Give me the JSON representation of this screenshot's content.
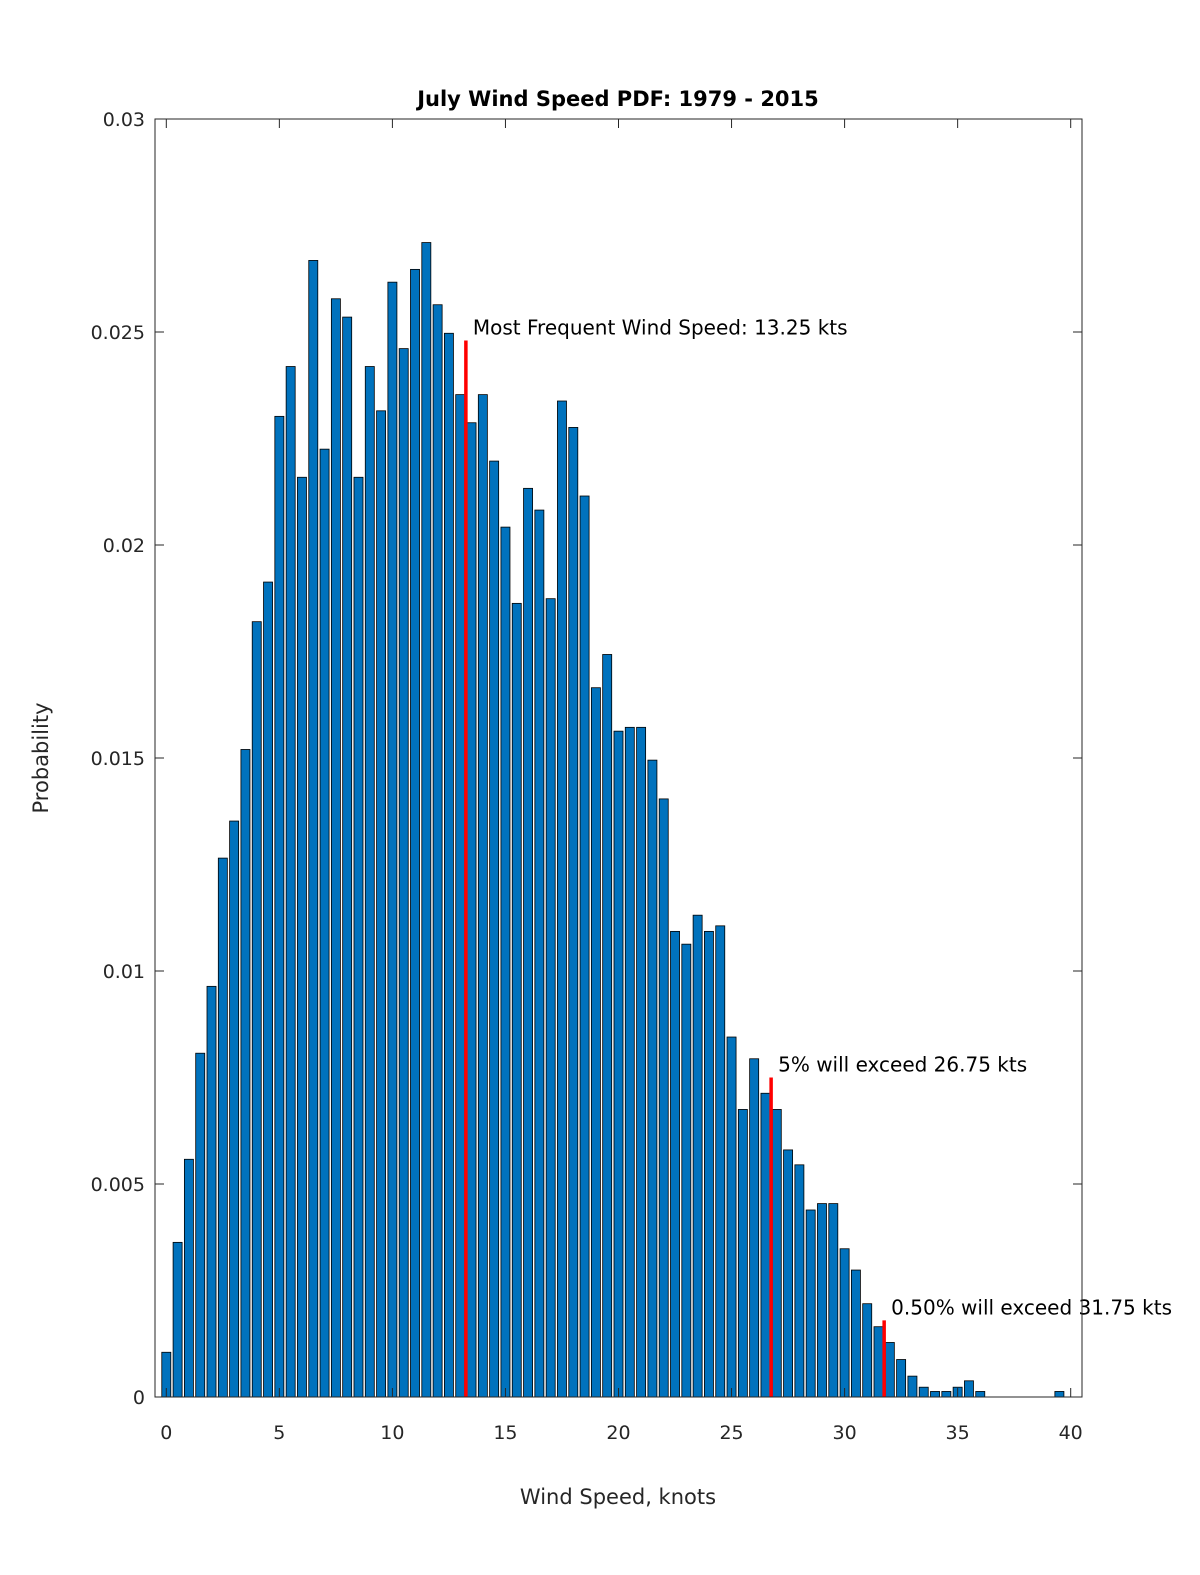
{
  "chart_data": {
    "type": "bar",
    "title": "July Wind Speed PDF: 1979 - 2015",
    "xlabel": "Wind Speed, knots",
    "ylabel": "Probability",
    "xlim": [
      -0.5,
      40.5
    ],
    "ylim": [
      0,
      0.03
    ],
    "xticks": [
      0,
      5,
      10,
      15,
      20,
      25,
      30,
      35,
      40
    ],
    "yticks": [
      0,
      0.005,
      0.01,
      0.015,
      0.02,
      0.025,
      0.03
    ],
    "ytick_labels": [
      "0",
      "0.005",
      "0.01",
      "0.015",
      "0.02",
      "0.025",
      "0.03"
    ],
    "bar_width": 0.4,
    "x": [
      0,
      0.5,
      1,
      1.5,
      2,
      2.5,
      3,
      3.5,
      4,
      4.5,
      5,
      5.5,
      6,
      6.5,
      7,
      7.5,
      8,
      8.5,
      9,
      9.5,
      10,
      10.5,
      11,
      11.5,
      12,
      12.5,
      13,
      13.5,
      14,
      14.5,
      15,
      15.5,
      16,
      16.5,
      17,
      17.5,
      18,
      18.5,
      19,
      19.5,
      20,
      20.5,
      21,
      21.5,
      22,
      22.5,
      23,
      23.5,
      24,
      24.5,
      25,
      25.5,
      26,
      26.5,
      27,
      27.5,
      28,
      28.5,
      29,
      29.5,
      30,
      30.5,
      31,
      31.5,
      32,
      32.5,
      33,
      33.5,
      34,
      34.5,
      35,
      35.5,
      36,
      39.5
    ],
    "values": [
      0.00105,
      0.00363,
      0.00558,
      0.00807,
      0.00964,
      0.01265,
      0.01352,
      0.0152,
      0.0182,
      0.01913,
      0.02302,
      0.02419,
      0.02159,
      0.02668,
      0.02225,
      0.02578,
      0.02535,
      0.02159,
      0.02419,
      0.02315,
      0.02617,
      0.02461,
      0.02647,
      0.0271,
      0.02564,
      0.02497,
      0.02353,
      0.02287,
      0.02353,
      0.02197,
      0.02042,
      0.01863,
      0.02133,
      0.02082,
      0.01874,
      0.02338,
      0.02276,
      0.02115,
      0.01665,
      0.01743,
      0.01563,
      0.01572,
      0.01572,
      0.01495,
      0.01404,
      0.01093,
      0.01063,
      0.01131,
      0.01093,
      0.01106,
      0.00845,
      0.00675,
      0.00794,
      0.00713,
      0.00675,
      0.0058,
      0.00545,
      0.00439,
      0.00454,
      0.00454,
      0.00348,
      0.00298,
      0.00219,
      0.00165,
      0.00128,
      0.00088,
      0.00049,
      0.00023,
      0.00013,
      0.00013,
      0.00023,
      0.00038,
      0.00013,
      0.00013
    ],
    "bar_color": "#0072BD",
    "marker_color": "#FF0000",
    "markers": [
      {
        "x": 13.25,
        "height": 0.0248,
        "label": "Most Frequent Wind Speed: 13.25 kts"
      },
      {
        "x": 26.75,
        "height": 0.0075,
        "label": "5% will exceed 26.75 kts"
      },
      {
        "x": 31.75,
        "height": 0.0018,
        "label": "0.50% will exceed 31.75 kts"
      }
    ]
  }
}
